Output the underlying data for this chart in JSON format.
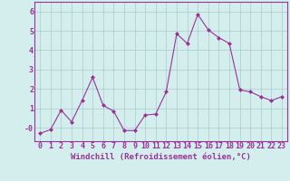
{
  "x": [
    0,
    1,
    2,
    3,
    4,
    5,
    6,
    7,
    8,
    9,
    10,
    11,
    12,
    13,
    14,
    15,
    16,
    17,
    18,
    19,
    20,
    21,
    22,
    23
  ],
  "y": [
    -0.3,
    -0.1,
    0.9,
    0.3,
    1.4,
    2.6,
    1.15,
    0.85,
    -0.15,
    -0.15,
    0.65,
    0.7,
    1.85,
    4.85,
    4.35,
    5.85,
    5.05,
    4.65,
    4.35,
    1.95,
    1.85,
    1.6,
    1.4,
    1.6
  ],
  "line_color": "#993399",
  "marker": "D",
  "marker_size": 2,
  "bg_color": "#d4eeee",
  "grid_color": "#aacccc",
  "xlabel": "Windchill (Refroidissement éolien,°C)",
  "xlabel_fontsize": 6.5,
  "tick_fontsize": 6.0,
  "ylim": [
    -0.7,
    6.5
  ],
  "yticks": [
    0,
    1,
    2,
    3,
    4,
    5,
    6
  ],
  "ytick_labels": [
    "-0",
    "1",
    "2",
    "3",
    "4",
    "5",
    "6"
  ],
  "xlim": [
    -0.5,
    23.5
  ]
}
